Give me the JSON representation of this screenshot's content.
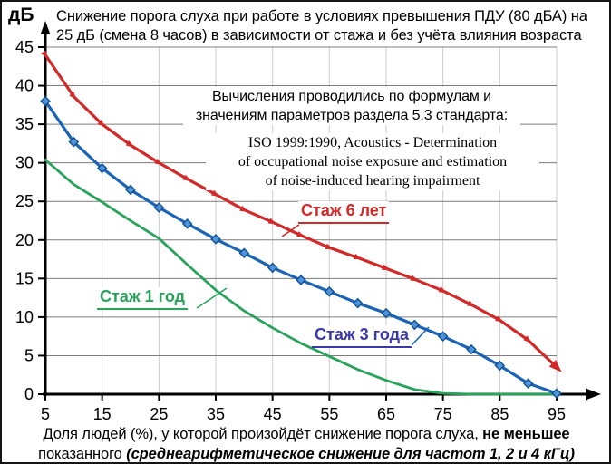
{
  "title": {
    "line1": "Снижение порога слуха при работе в условиях превышения ПДУ (80 дБА) на",
    "line2": "25 дБ (смена 8 часов) в зависимости от стажа и без учёта влияния возраста"
  },
  "y_axis_unit": "дБ",
  "annotations": {
    "method": {
      "line1": "Вычисления проводились по формулам и",
      "line2": "значениям параметров раздела 5.3 стандарта:"
    },
    "iso": {
      "line1": "ISO 1999:1990, Acoustics - Determination",
      "line2": "of occupational noise exposure and estimation",
      "line3": "of noise-induced hearing impairment"
    }
  },
  "x_axis_caption": {
    "part1": "Доля людей (%), у которой произойдёт снижение порога слуха, ",
    "part1_bold": "не меньшее",
    "part2": "показанного ",
    "part2_bold_italic": "(среднеарифметическое снижение для частот 1, 2 и 4 кГц)"
  },
  "chart_data": {
    "type": "line",
    "title": "Снижение порога слуха при работе в условиях превышения ПДУ (80 дБА) на 25 дБ (смена 8 часов) в зависимости от стажа и без учёта влияния возраста",
    "xlabel": "Доля людей (%), у которой произойдёт снижение порога слуха, не меньшее показанного (среднеарифметическое снижение для частот 1, 2 и 4 кГц)",
    "ylabel": "дБ",
    "xlim": [
      5,
      95
    ],
    "ylim": [
      0,
      45
    ],
    "x_ticks": [
      5,
      15,
      25,
      35,
      45,
      55,
      65,
      75,
      85,
      95
    ],
    "y_ticks": [
      0,
      5,
      10,
      15,
      20,
      25,
      30,
      35,
      40,
      45
    ],
    "grid": true,
    "legend_position": "inline-callouts",
    "x": [
      5,
      10,
      15,
      20,
      25,
      30,
      35,
      40,
      45,
      50,
      55,
      60,
      65,
      70,
      75,
      80,
      85,
      90,
      95
    ],
    "series": [
      {
        "name": "Стаж 6 лет",
        "color": "#d22828",
        "marker": "triangle",
        "values": [
          44,
          38.6,
          35,
          32.3,
          30,
          27.9,
          25.9,
          23.9,
          22.3,
          20.6,
          19,
          17.7,
          16.3,
          14.9,
          13.4,
          11.6,
          9.6,
          7,
          3.5
        ]
      },
      {
        "name": "Стаж 3 года",
        "color": "#1a63b5",
        "label_color": "#3939a8",
        "marker": "diamond",
        "values": [
          38,
          32.7,
          29.3,
          26.5,
          24.2,
          22.1,
          20.1,
          18.3,
          16.4,
          14.8,
          13.3,
          11.8,
          10.5,
          9,
          7.5,
          5.8,
          3.7,
          1.4,
          0.1
        ]
      },
      {
        "name": "Стаж 1 год",
        "color": "#29a35c",
        "marker": "none",
        "values": [
          30.4,
          27.2,
          24.9,
          22.5,
          20.2,
          16.8,
          13.5,
          10.8,
          8.6,
          6.6,
          4.9,
          3.2,
          1.8,
          0.6,
          0.1,
          0,
          0,
          0,
          0
        ]
      }
    ],
    "grid_colors": {
      "horizontal": "#7c7c7c",
      "vertical": "#cbcbcb"
    },
    "axis_color": "#000000"
  }
}
